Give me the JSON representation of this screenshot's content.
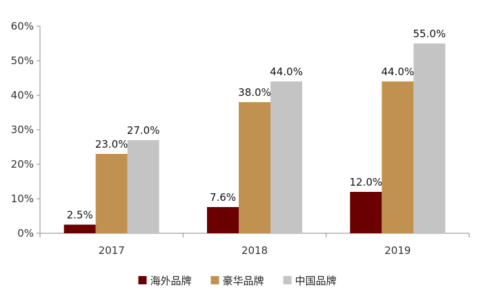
{
  "chart_data": {
    "type": "bar",
    "categories": [
      "2017",
      "2018",
      "2019"
    ],
    "series": [
      {
        "name": "海外品牌",
        "color": "#6B0000",
        "values": [
          2.5,
          7.6,
          12.0
        ]
      },
      {
        "name": "豪华品牌",
        "color": "#C0914F",
        "values": [
          23.0,
          38.0,
          44.0
        ]
      },
      {
        "name": "中国品牌",
        "color": "#C4C4C4",
        "values": [
          27.0,
          44.0,
          55.0
        ]
      }
    ],
    "data_labels": [
      [
        "2.5%",
        "7.6%",
        "12.0%"
      ],
      [
        "23.0%",
        "38.0%",
        "44.0%"
      ],
      [
        "27.0%",
        "44.0%",
        "55.0%"
      ]
    ],
    "y_ticks": [
      "0%",
      "10%",
      "20%",
      "30%",
      "40%",
      "50%",
      "60%"
    ],
    "ylim": [
      0,
      60
    ],
    "grid": false,
    "legend": "bottom-center"
  }
}
